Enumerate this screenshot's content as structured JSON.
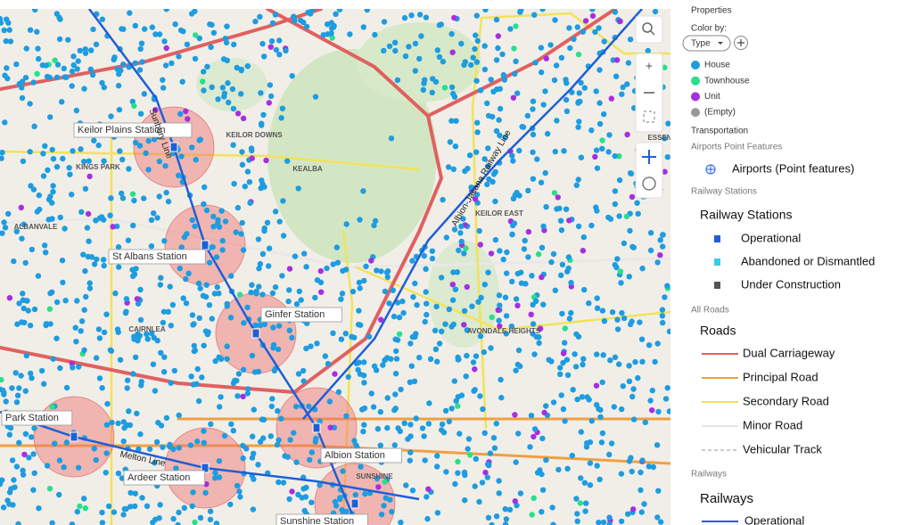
{
  "map": {
    "stations": [
      "Keilor Plains Station",
      "St Albans Station",
      "Ginfer Station",
      "Albion Station",
      "Ardeer Station",
      "Park Station",
      "Sunshine Station"
    ],
    "suburbs": [
      "KINGS PARK",
      "ALBANVALE",
      "CAIRNLEA",
      "KEILOR DOWNS",
      "KEALBA",
      "KEILOR EAST",
      "AVONDALE HEIGHTS",
      "SUNSHINE",
      "ESSEN"
    ],
    "lines": [
      "Sunbury Line",
      "Albion-Jacana Railway Line",
      "Melton Line"
    ]
  },
  "panel": {
    "title": "Properties",
    "color_by": "Color by:",
    "type_button": "Type",
    "types": [
      {
        "label": "House",
        "color": "#1e9ce0"
      },
      {
        "label": "Townhouse",
        "color": "#27e08a"
      },
      {
        "label": "Unit",
        "color": "#a72ee0"
      },
      {
        "label": "(Empty)",
        "color": "#999999"
      }
    ],
    "transportation": "Transportation",
    "airports_group": "Airports Point Features",
    "airports_item": "Airports (Point features)",
    "stations_group": "Railway Stations",
    "stations_title": "Railway Stations",
    "station_items": [
      {
        "label": "Operational",
        "color": "#1f5fd6"
      },
      {
        "label": "Abandoned or Dismantled",
        "color": "#3ec9e6"
      },
      {
        "label": "Under Construction",
        "color": "#555555"
      }
    ],
    "roads_group": "All Roads",
    "roads_title": "Roads",
    "road_items": [
      {
        "label": "Dual Carriageway",
        "color": "#e06060"
      },
      {
        "label": "Principal Road",
        "color": "#f0a040"
      },
      {
        "label": "Secondary Road",
        "color": "#f2e25a"
      },
      {
        "label": "Minor Road",
        "color": "#e4e4e4"
      },
      {
        "label": "Vehicular Track",
        "color": "#cccccc"
      }
    ],
    "railways_group": "Railways",
    "railways_title": "Railways",
    "railway_items": [
      {
        "label": "Operational",
        "color": "#1f5fd6"
      }
    ]
  }
}
